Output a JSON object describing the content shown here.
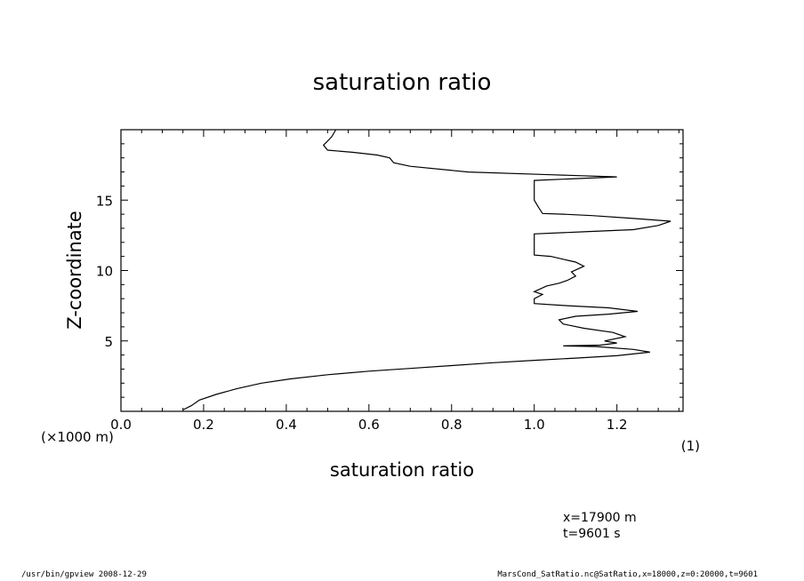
{
  "chart_data": {
    "type": "line",
    "title": "saturation ratio",
    "xlabel": "saturation ratio",
    "ylabel": "Z-coordinate",
    "x_unit_label": "(1)",
    "y_unit_label": "(×1000 m)",
    "xlim": [
      0.0,
      1.36
    ],
    "ylim": [
      0.0,
      20.0
    ],
    "x_ticks": [
      "0.0",
      "0.2",
      "0.4",
      "0.6",
      "0.8",
      "1.0",
      "1.2"
    ],
    "y_ticks": [
      "5",
      "10",
      "15"
    ],
    "grid": false,
    "series": [
      {
        "points": [
          [
            0.15,
            0.1
          ],
          [
            0.17,
            0.4
          ],
          [
            0.19,
            0.8
          ],
          [
            0.23,
            1.2
          ],
          [
            0.28,
            1.6
          ],
          [
            0.34,
            2.0
          ],
          [
            0.41,
            2.3
          ],
          [
            0.5,
            2.6
          ],
          [
            0.6,
            2.85
          ],
          [
            0.7,
            3.05
          ],
          [
            0.8,
            3.25
          ],
          [
            0.9,
            3.45
          ],
          [
            1.0,
            3.62
          ],
          [
            1.1,
            3.78
          ],
          [
            1.2,
            3.95
          ],
          [
            1.28,
            4.2
          ],
          [
            1.24,
            4.4
          ],
          [
            1.15,
            4.6
          ],
          [
            1.07,
            4.65
          ],
          [
            1.16,
            4.7
          ],
          [
            1.2,
            4.85
          ],
          [
            1.17,
            5.0
          ],
          [
            1.22,
            5.3
          ],
          [
            1.19,
            5.6
          ],
          [
            1.12,
            5.9
          ],
          [
            1.07,
            6.2
          ],
          [
            1.06,
            6.5
          ],
          [
            1.1,
            6.75
          ],
          [
            1.18,
            6.9
          ],
          [
            1.25,
            7.1
          ],
          [
            1.18,
            7.35
          ],
          [
            1.08,
            7.5
          ],
          [
            1.0,
            7.65
          ],
          [
            1.0,
            8.0
          ],
          [
            1.02,
            8.3
          ],
          [
            1.0,
            8.5
          ],
          [
            1.03,
            8.9
          ],
          [
            1.06,
            9.1
          ],
          [
            1.08,
            9.3
          ],
          [
            1.1,
            9.6
          ],
          [
            1.09,
            9.9
          ],
          [
            1.12,
            10.3
          ],
          [
            1.1,
            10.6
          ],
          [
            1.07,
            10.8
          ],
          [
            1.04,
            11.0
          ],
          [
            1.0,
            11.1
          ],
          [
            1.0,
            11.6
          ],
          [
            1.0,
            12.0
          ],
          [
            1.0,
            12.6
          ],
          [
            1.12,
            12.75
          ],
          [
            1.24,
            12.9
          ],
          [
            1.3,
            13.2
          ],
          [
            1.33,
            13.5
          ],
          [
            1.24,
            13.7
          ],
          [
            1.14,
            13.9
          ],
          [
            1.07,
            14.0
          ],
          [
            1.02,
            14.05
          ],
          [
            1.01,
            14.5
          ],
          [
            1.0,
            15.0
          ],
          [
            1.0,
            15.5
          ],
          [
            1.0,
            16.0
          ],
          [
            1.0,
            16.4
          ],
          [
            1.2,
            16.65
          ],
          [
            1.04,
            16.8
          ],
          [
            0.84,
            17.0
          ],
          [
            0.7,
            17.4
          ],
          [
            0.66,
            17.65
          ],
          [
            0.65,
            18.0
          ],
          [
            0.62,
            18.2
          ],
          [
            0.56,
            18.4
          ],
          [
            0.5,
            18.55
          ],
          [
            0.49,
            18.9
          ],
          [
            0.5,
            19.2
          ],
          [
            0.51,
            19.5
          ],
          [
            0.52,
            20.0
          ]
        ]
      }
    ]
  },
  "annotations": {
    "position": "x=17900  m",
    "time": "t=9601  s"
  },
  "footer": {
    "left": "/usr/bin/gpview   2008-12-29",
    "right": "MarsCond_SatRatio.nc@SatRatio,x=18000,z=0:20000,t=9601"
  }
}
